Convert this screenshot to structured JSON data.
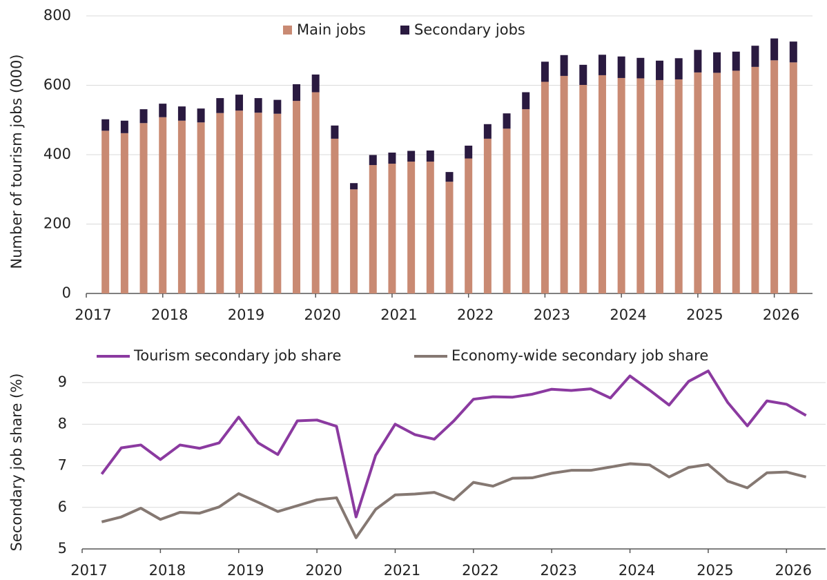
{
  "chart_data": [
    {
      "type": "bar",
      "stacked": true,
      "y_label": "Number of tourism jobs (000)",
      "x": [
        2017.25,
        2017.5,
        2017.75,
        2018,
        2018.25,
        2018.5,
        2018.75,
        2019,
        2019.25,
        2019.5,
        2019.75,
        2020,
        2020.25,
        2020.5,
        2020.75,
        2021,
        2021.25,
        2021.5,
        2021.75,
        2022,
        2022.25,
        2022.5,
        2022.75,
        2023,
        2023.25,
        2023.5,
        2023.75,
        2024,
        2024.25,
        2024.5,
        2024.75,
        2025,
        2025.25,
        2025.5,
        2025.75,
        2026,
        2026.25
      ],
      "xlim": [
        2017,
        2026.5
      ],
      "xticks": [
        2017,
        2018,
        2019,
        2020,
        2021,
        2022,
        2023,
        2024,
        2025,
        2026
      ],
      "ylim": [
        0,
        800
      ],
      "yticks": [
        0,
        200,
        400,
        600,
        800
      ],
      "grid": true,
      "legend": "upper center",
      "series": [
        {
          "name": "Main jobs",
          "color": "#c98a73",
          "values": [
            469,
            462,
            491,
            508,
            498,
            493,
            520,
            527,
            521,
            518,
            555,
            580,
            446,
            300,
            370,
            374,
            380,
            380,
            322,
            389,
            446,
            475,
            531,
            610,
            627,
            601,
            629,
            621,
            620,
            615,
            617,
            637,
            636,
            642,
            653,
            672,
            666
          ]
        },
        {
          "name": "Secondary jobs",
          "color": "#2a1a40",
          "values": [
            33,
            36,
            40,
            39,
            41,
            40,
            43,
            46,
            42,
            40,
            48,
            51,
            38,
            18,
            29,
            32,
            31,
            32,
            28,
            37,
            42,
            44,
            49,
            58,
            60,
            58,
            59,
            62,
            59,
            56,
            61,
            65,
            59,
            55,
            61,
            63,
            60
          ]
        }
      ]
    },
    {
      "type": "line",
      "y_label": "Secondary job share (%)",
      "x": [
        2017.25,
        2017.5,
        2017.75,
        2018,
        2018.25,
        2018.5,
        2018.75,
        2019,
        2019.25,
        2019.5,
        2019.75,
        2020,
        2020.25,
        2020.5,
        2020.75,
        2021,
        2021.25,
        2021.5,
        2021.75,
        2022,
        2022.25,
        2022.5,
        2022.75,
        2023,
        2023.25,
        2023.5,
        2023.75,
        2024,
        2024.25,
        2024.5,
        2024.75,
        2025,
        2025.25,
        2025.5,
        2025.75,
        2026,
        2026.25
      ],
      "xlim": [
        2017,
        2026.5
      ],
      "xticks": [
        2017,
        2018,
        2019,
        2020,
        2021,
        2022,
        2023,
        2024,
        2025,
        2026
      ],
      "ylim": [
        5,
        9.5
      ],
      "yticks": [
        5,
        6,
        7,
        8,
        9
      ],
      "grid": true,
      "legend": "upper center",
      "series": [
        {
          "name": "Tourism secondary job share",
          "color": "#8b3aa0",
          "values": [
            6.8,
            7.43,
            7.5,
            7.15,
            7.5,
            7.42,
            7.55,
            8.17,
            7.55,
            7.27,
            8.08,
            8.1,
            7.95,
            5.77,
            7.25,
            8.0,
            7.75,
            7.64,
            8.08,
            8.6,
            8.66,
            8.65,
            8.72,
            8.84,
            8.81,
            8.85,
            8.63,
            9.16,
            8.82,
            8.46,
            9.03,
            9.28,
            8.52,
            7.96,
            8.56,
            8.48,
            8.21
          ]
        },
        {
          "name": "Economy-wide secondary job share",
          "color": "#857872",
          "values": [
            5.65,
            5.77,
            5.98,
            5.71,
            5.88,
            5.86,
            6.01,
            6.33,
            6.12,
            5.9,
            6.04,
            6.18,
            6.23,
            5.27,
            5.95,
            6.3,
            6.32,
            6.36,
            6.18,
            6.6,
            6.51,
            6.7,
            6.71,
            6.82,
            6.89,
            6.89,
            6.97,
            7.05,
            7.02,
            6.73,
            6.96,
            7.03,
            6.63,
            6.47,
            6.83,
            6.85,
            6.73
          ]
        }
      ]
    }
  ]
}
